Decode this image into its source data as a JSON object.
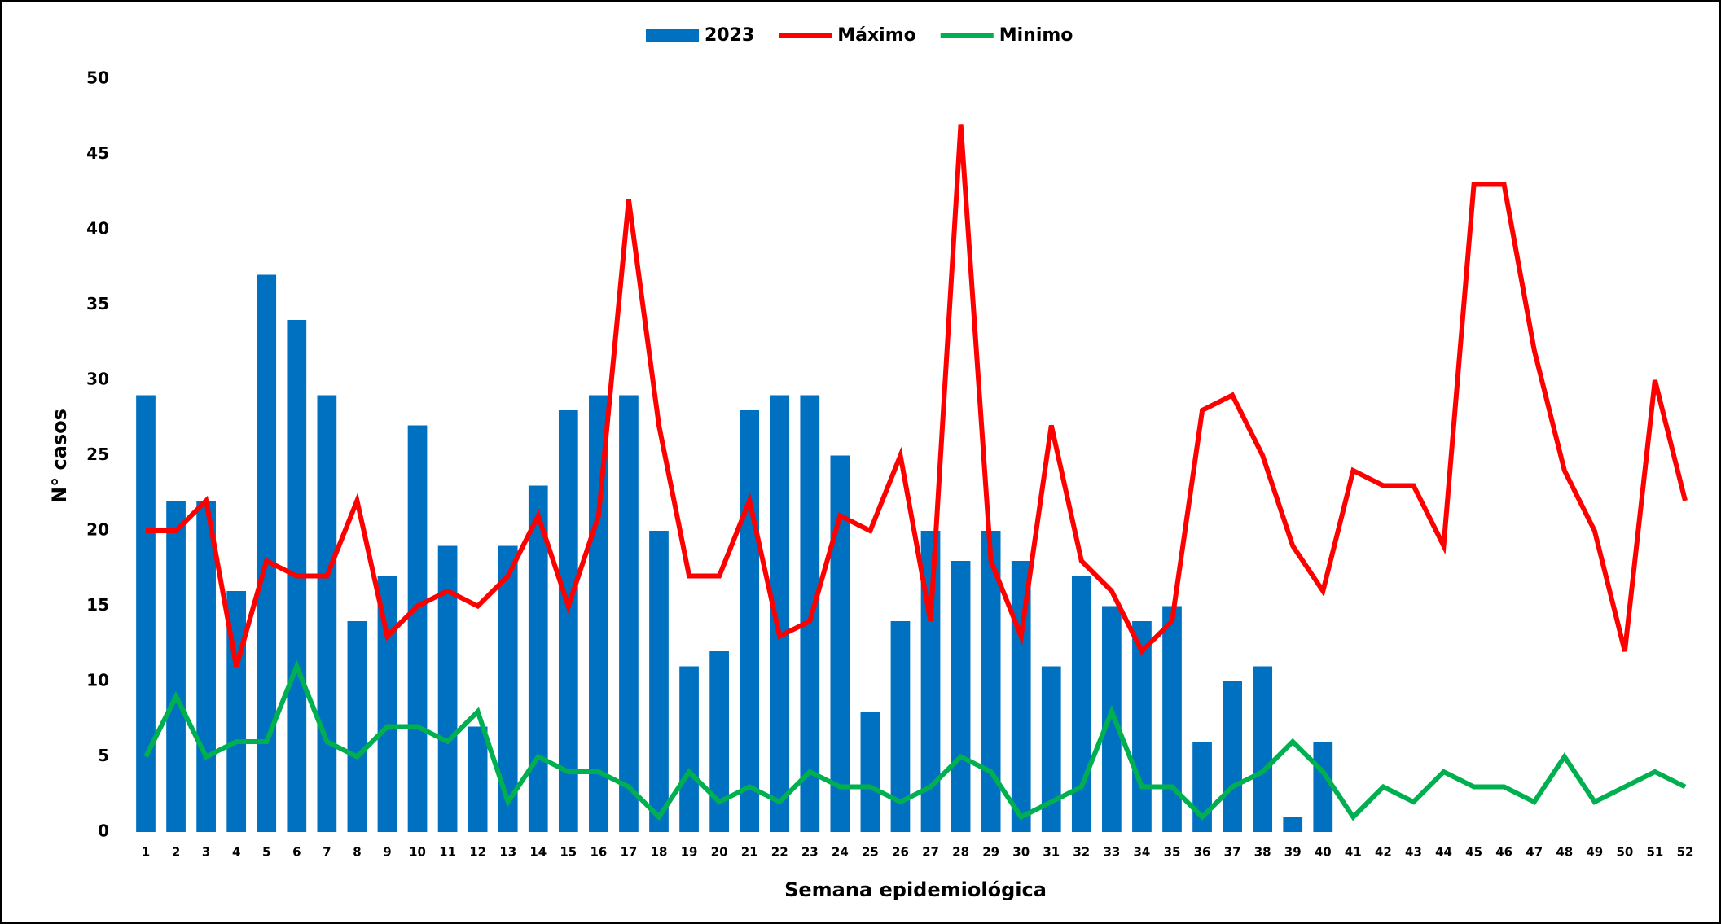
{
  "chart_data": {
    "type": "bar-line",
    "x_label": "Semana epidemiológica",
    "y_label": "N° casos",
    "categories": [
      1,
      2,
      3,
      4,
      5,
      6,
      7,
      8,
      9,
      10,
      11,
      12,
      13,
      14,
      15,
      16,
      17,
      18,
      19,
      20,
      21,
      22,
      23,
      24,
      25,
      26,
      27,
      28,
      29,
      30,
      31,
      32,
      33,
      34,
      35,
      36,
      37,
      38,
      39,
      40,
      41,
      42,
      43,
      44,
      45,
      46,
      47,
      48,
      49,
      50,
      51,
      52
    ],
    "series": [
      {
        "name": "2023",
        "type": "bar",
        "color": "#0070c0",
        "values": [
          29,
          22,
          22,
          16,
          37,
          34,
          29,
          14,
          17,
          27,
          19,
          7,
          19,
          23,
          28,
          29,
          29,
          20,
          11,
          12,
          28,
          29,
          29,
          25,
          8,
          14,
          20,
          18,
          20,
          18,
          11,
          17,
          15,
          14,
          15,
          6,
          10,
          11,
          1,
          6,
          null,
          null,
          null,
          null,
          null,
          null,
          null,
          null,
          null,
          null,
          null,
          null
        ]
      },
      {
        "name": "Máximo",
        "type": "line",
        "color": "#ff0000",
        "values": [
          20,
          20,
          22,
          11,
          18,
          17,
          17,
          22,
          13,
          15,
          16,
          15,
          17,
          21,
          15,
          21,
          42,
          27,
          17,
          17,
          22,
          13,
          14,
          21,
          20,
          25,
          14,
          47,
          18,
          13,
          27,
          18,
          16,
          12,
          14,
          28,
          29,
          25,
          19,
          16,
          24,
          23,
          23,
          19,
          43,
          43,
          32,
          24,
          20,
          12,
          30,
          22
        ]
      },
      {
        "name": "Minimo",
        "type": "line",
        "color": "#00b050",
        "values": [
          5,
          9,
          5,
          6,
          6,
          11,
          6,
          5,
          7,
          7,
          6,
          8,
          2,
          5,
          4,
          4,
          3,
          1,
          4,
          2,
          3,
          2,
          4,
          3,
          3,
          2,
          3,
          5,
          4,
          1,
          2,
          3,
          8,
          3,
          3,
          1,
          3,
          4,
          6,
          4,
          1,
          3,
          2,
          4,
          3,
          3,
          2,
          5,
          2,
          3,
          4,
          3
        ]
      }
    ],
    "ylim": [
      0,
      50
    ],
    "yticks": [
      0,
      5,
      10,
      15,
      20,
      25,
      30,
      35,
      40,
      45,
      50
    ],
    "grid": false,
    "legend": "top"
  }
}
